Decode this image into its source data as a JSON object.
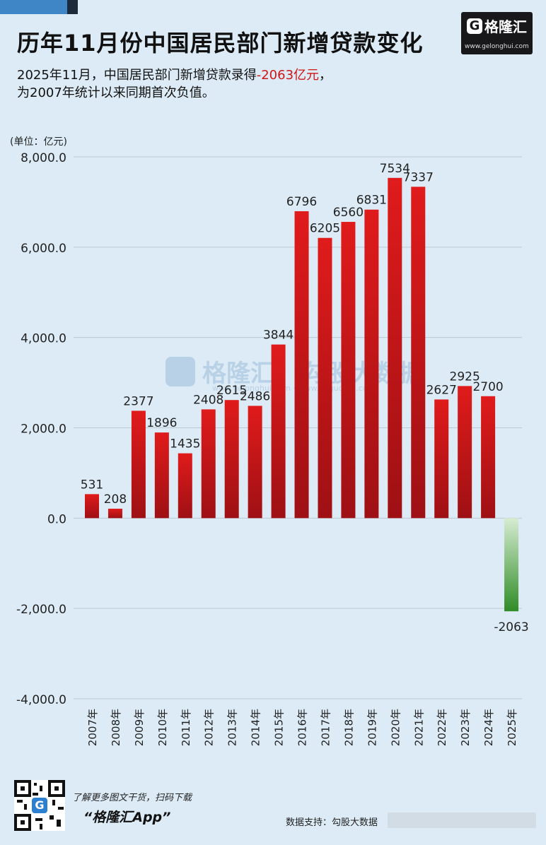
{
  "title": "历年11月份中国居民部门新增贷款变化",
  "subtitle": {
    "line1_prefix": "2025年11月，中国居民部门新增贷款录得",
    "line1_highlight": "-2063亿元",
    "line1_suffix": "，",
    "line2": "为2007年统计以来同期首次负值。"
  },
  "logo": {
    "mark": "G",
    "name": "格隆汇",
    "url": "www.gelonghui.com"
  },
  "watermark": {
    "brand": "格隆汇",
    "data_brand": "勾股大数据",
    "url": "www.gelonghui.com · www.gogudata.com"
  },
  "footer": {
    "promo": "了解更多图文干货，扫码下载",
    "app_name": "“格隆汇App”",
    "source": "数据支持：勾股大数据"
  },
  "colors": {
    "positive": "#c8171b",
    "negative": "#3e9b31",
    "background": "#dcebf5",
    "highlight": "#d01515"
  },
  "chart_data": {
    "type": "bar",
    "unit_label": "(单位：亿元)",
    "categories": [
      "2007年",
      "2008年",
      "2009年",
      "2010年",
      "2011年",
      "2012年",
      "2013年",
      "2014年",
      "2015年",
      "2016年",
      "2017年",
      "2018年",
      "2019年",
      "2020年",
      "2021年",
      "2022年",
      "2023年",
      "2024年",
      "2025年"
    ],
    "values": [
      531,
      208,
      2377,
      1896,
      1435,
      2408,
      2615,
      2486,
      3844,
      6796,
      6205,
      6560,
      6831,
      7534,
      7337,
      2627,
      2925,
      2700,
      -2063
    ],
    "ylim": [
      -4000,
      8000
    ],
    "yticks": [
      -4000,
      -2000,
      0,
      2000,
      4000,
      6000,
      8000
    ],
    "ytick_labels": [
      "-4,000.0",
      "-2,000.0",
      "0.0",
      "2,000.0",
      "4,000.0",
      "6,000.0",
      "8,000.0"
    ],
    "grid": true,
    "legend": "none"
  }
}
